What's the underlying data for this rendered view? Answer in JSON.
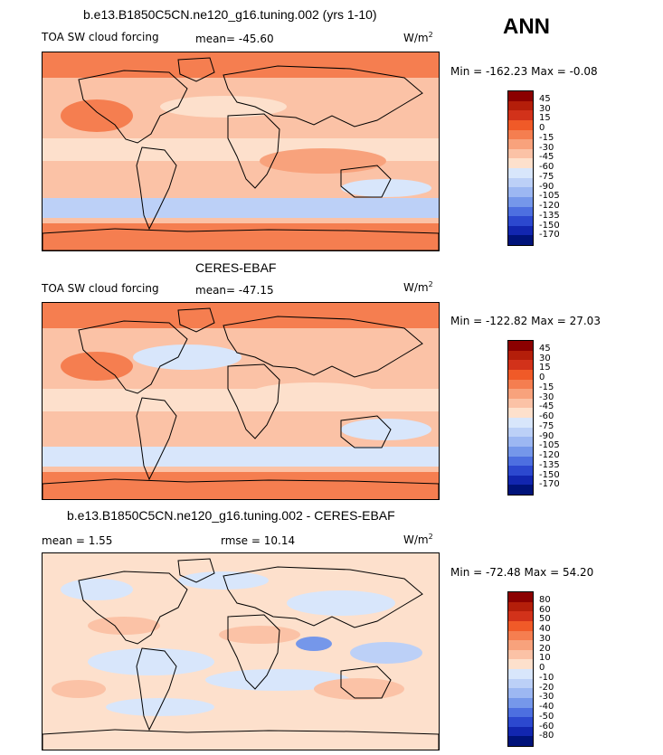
{
  "season": "ANN",
  "panels": [
    {
      "title": "b.e13.B1850C5CN.ne120_g16.tuning.002 (yrs 1-10)",
      "left_label": "TOA SW cloud forcing",
      "center_label": "mean= -45.60",
      "right_label": "W/m",
      "units_exp": "2",
      "minmax": "Min = -162.23 Max = -0.08",
      "levels": [
        "45",
        "30",
        "15",
        "0",
        "-15",
        "-30",
        "-45",
        "-60",
        "-75",
        "-90",
        "-105",
        "-120",
        "-135",
        "-150",
        "-170"
      ],
      "colors": [
        "#8b0000",
        "#b41e0a",
        "#d2321a",
        "#f05a28",
        "#f57e50",
        "#f8a27c",
        "#fbc2a6",
        "#fde0cc",
        "#d8e6fb",
        "#bcd0f7",
        "#9cb7f2",
        "#7597ea",
        "#4d6fe0",
        "#2c48cf",
        "#1226b0",
        "#00137a"
      ]
    },
    {
      "title": "CERES-EBAF",
      "left_label": "TOA SW cloud forcing",
      "center_label": "mean= -47.15",
      "right_label": "W/m",
      "units_exp": "2",
      "minmax": "Min = -122.82 Max = 27.03",
      "levels": [
        "45",
        "30",
        "15",
        "0",
        "-15",
        "-30",
        "-45",
        "-60",
        "-75",
        "-90",
        "-105",
        "-120",
        "-135",
        "-150",
        "-170"
      ],
      "colors": [
        "#8b0000",
        "#b41e0a",
        "#d2321a",
        "#f05a28",
        "#f57e50",
        "#f8a27c",
        "#fbc2a6",
        "#fde0cc",
        "#d8e6fb",
        "#bcd0f7",
        "#9cb7f2",
        "#7597ea",
        "#4d6fe0",
        "#2c48cf",
        "#1226b0",
        "#00137a"
      ]
    },
    {
      "title": "b.e13.B1850C5CN.ne120_g16.tuning.002 - CERES-EBAF",
      "left_label": "mean =    1.55",
      "center_label": "rmse =   10.14",
      "right_label": "W/m",
      "units_exp": "2",
      "minmax": "Min = -72.48 Max =  54.20",
      "levels": [
        "80",
        "60",
        "50",
        "40",
        "30",
        "20",
        "10",
        "0",
        "-10",
        "-20",
        "-30",
        "-40",
        "-50",
        "-60",
        "-80"
      ],
      "colors": [
        "#8b0000",
        "#b41e0a",
        "#d2321a",
        "#f05a28",
        "#f57e50",
        "#f8a27c",
        "#fbc2a6",
        "#fde0cc",
        "#d8e6fb",
        "#bcd0f7",
        "#9cb7f2",
        "#7597ea",
        "#4d6fe0",
        "#2c48cf",
        "#1226b0",
        "#00137a"
      ]
    }
  ],
  "chart_data": [
    {
      "type": "heatmap",
      "title": "b.e13.B1850C5CN.ne120_g16.tuning.002 (yrs 1-10)",
      "variable": "TOA SW cloud forcing",
      "units": "W/m2",
      "mean": -45.6,
      "min": -162.23,
      "max": -0.08,
      "contour_levels": [
        -170,
        -150,
        -135,
        -120,
        -105,
        -90,
        -75,
        -60,
        -45,
        -30,
        -15,
        0,
        15,
        30,
        45
      ]
    },
    {
      "type": "heatmap",
      "title": "CERES-EBAF",
      "variable": "TOA SW cloud forcing",
      "units": "W/m2",
      "mean": -47.15,
      "min": -122.82,
      "max": 27.03,
      "contour_levels": [
        -170,
        -150,
        -135,
        -120,
        -105,
        -90,
        -75,
        -60,
        -45,
        -30,
        -15,
        0,
        15,
        30,
        45
      ]
    },
    {
      "type": "heatmap",
      "title": "b.e13.B1850C5CN.ne120_g16.tuning.002 - CERES-EBAF",
      "variable": "difference",
      "units": "W/m2",
      "mean": 1.55,
      "rmse": 10.14,
      "min": -72.48,
      "max": 54.2,
      "contour_levels": [
        -80,
        -60,
        -50,
        -40,
        -30,
        -20,
        -10,
        0,
        10,
        20,
        30,
        40,
        50,
        60,
        80
      ]
    }
  ]
}
